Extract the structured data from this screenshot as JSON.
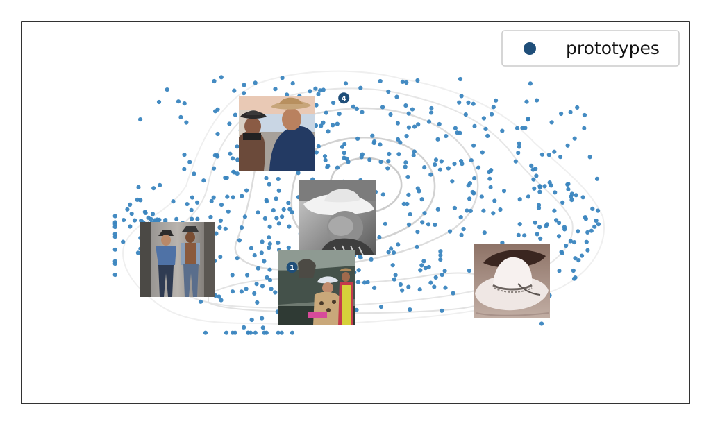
{
  "chart_data": {
    "type": "scatter",
    "title": "",
    "xlabel": "",
    "ylabel": "",
    "axes_ticks": "none",
    "grid": false,
    "xlim": [
      -10,
      10
    ],
    "ylim": [
      -7,
      7
    ],
    "legend": {
      "position": "top-right",
      "entries": [
        "prototypes"
      ]
    },
    "colors": {
      "points": "#3a85bf",
      "prototype": "#1f4e79",
      "contour": "#d9d9d9",
      "frame": "#000000"
    },
    "density_contours": {
      "levels": 4,
      "centre": [
        0.2,
        1.4
      ]
    },
    "point_count": 620,
    "prototypes": [
      {
        "id": 1,
        "label": "1",
        "x": -1.9,
        "y": -2.0,
        "image": "people-in-cowboy-hats-by-car"
      },
      {
        "id": 2,
        "label": "",
        "x": -5.0,
        "y": -1.0,
        "image": "two-men-in-cowboy-hats"
      },
      {
        "id": 3,
        "label": "",
        "x": -0.5,
        "y": 1.0,
        "image": "grayscale-boy-white-cowboy-hat"
      },
      {
        "id": 4,
        "label": "4",
        "x": -0.35,
        "y": 4.2,
        "image": "couple-in-cowboy-hats"
      },
      {
        "id": 5,
        "label": "",
        "x": 5.5,
        "y": -1.8,
        "image": "white-cowboy-hat-on-sand"
      }
    ]
  }
}
